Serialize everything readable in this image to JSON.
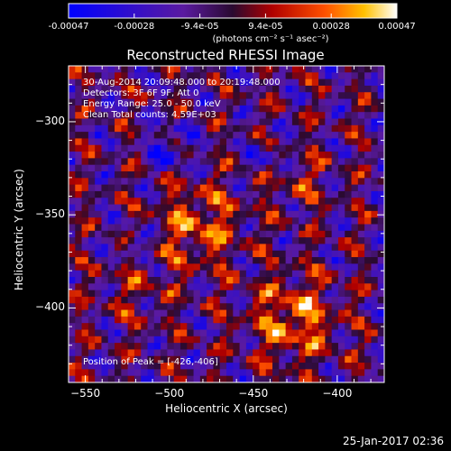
{
  "colorbar": {
    "ticks": [
      "-0.00047",
      "-0.00028",
      "-9.4e-05",
      "9.4e-05",
      "0.00028",
      "0.00047"
    ],
    "units": "(photons cm⁻² s⁻¹ asec⁻²)"
  },
  "chart_data": {
    "type": "heatmap",
    "title": "Reconstructed RHESSI Image",
    "xlabel": "Heliocentric X (arcsec)",
    "ylabel": "Heliocentric Y (arcsec)",
    "xlim": [
      -560,
      -372
    ],
    "ylim": [
      -440,
      -270
    ],
    "xticks": [
      -550,
      -500,
      -450,
      -400
    ],
    "yticks": [
      -300,
      -350,
      -400
    ],
    "clim": [
      -0.00047,
      0.00047
    ],
    "colormap": "blue-purple-red-yellow-white",
    "info_lines": [
      "30-Aug-2014 20:09:48.000 to 20:19:48.000",
      "Detectors: 3F 6F 9F, Att 0",
      "Energy Range: 25.0 - 50.0 keV",
      "Clean   Total counts: 4.59E+03"
    ],
    "peak_label": "Position of Peak = [-426,-406]",
    "peak": [
      -426,
      -406
    ],
    "grid": false
  },
  "footer": {
    "timestamp": "25-Jan-2017 02:36"
  }
}
